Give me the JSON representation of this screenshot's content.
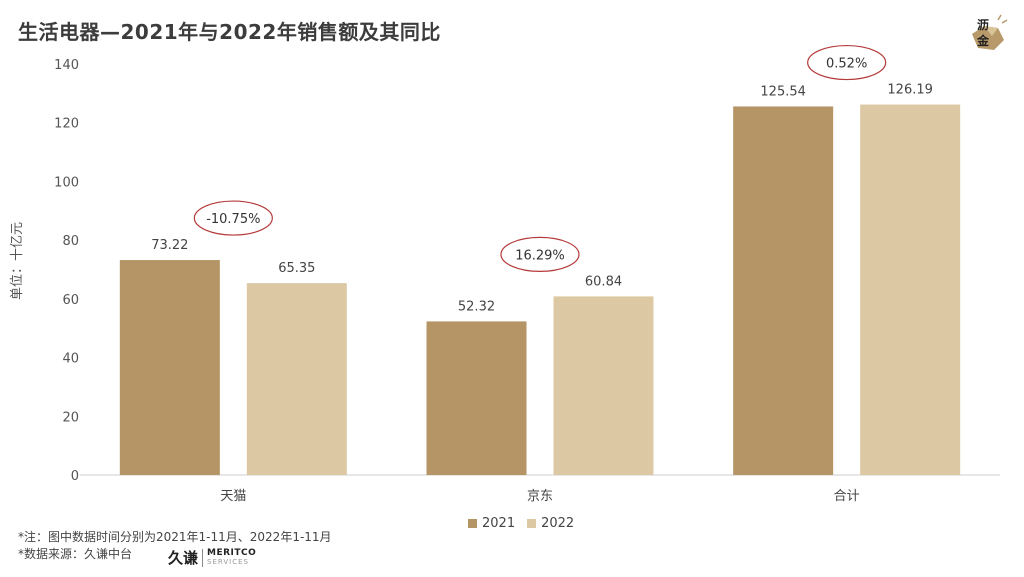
{
  "title": "生活电器—2021年与2022年销售额及其同比",
  "logo": {
    "line1": "沥",
    "line2": "金",
    "icon": "gold-nugget-icon",
    "color": "#b8996a"
  },
  "chart_data": {
    "type": "bar",
    "categories": [
      "天猫",
      "京东",
      "合计"
    ],
    "series": [
      {
        "name": "2021",
        "values": [
          73.22,
          52.32,
          125.54
        ],
        "labels": [
          "73.22",
          "52.32",
          "125.54"
        ],
        "color": "#b59465"
      },
      {
        "name": "2022",
        "values": [
          65.35,
          60.84,
          126.19
        ],
        "labels": [
          "65.35",
          "60.84",
          "126.19"
        ],
        "color": "#dcc8a3"
      }
    ],
    "yoy": [
      "-10.75%",
      "16.29%",
      "0.52%"
    ],
    "ylabel": "单位：十亿元",
    "ylim": [
      0,
      140
    ],
    "yticks": [
      0,
      20,
      40,
      60,
      80,
      100,
      120,
      140
    ],
    "grid": false,
    "legend_position": "bottom-center"
  },
  "notes": {
    "line1": "*注：图中数据时间分别为2021年1-11月、2022年1-11月",
    "line2": "*数据来源：久谦中台"
  },
  "brand": {
    "cn": "久谦",
    "en1": "MERITCO",
    "en2": "SERVICES"
  }
}
